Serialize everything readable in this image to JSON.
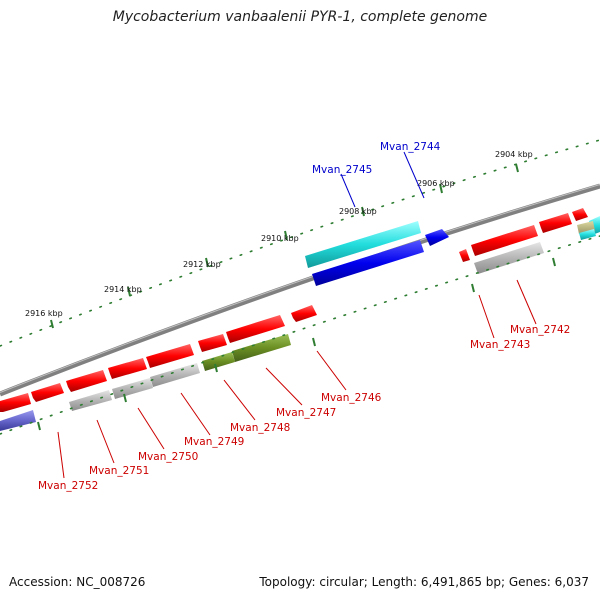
{
  "title": "Mycobacterium vanbaalenii PYR-1, complete genome",
  "accession": "Accession: NC_008726",
  "summary": "Topology: circular; Length: 6,491,865 bp; Genes: 6,037",
  "kbp_labels": [
    "2904 kbp",
    "2906 kbp",
    "2908 kbp",
    "2910 kbp",
    "2912 kbp",
    "2914 kbp",
    "2916 kbp"
  ],
  "genes": [
    {
      "label": "Mvan_2744",
      "color": "#0000cc"
    },
    {
      "label": "Mvan_2745",
      "color": "#0000cc"
    },
    {
      "label": "Mvan_2742",
      "color": "#cc0000"
    },
    {
      "label": "Mvan_2743",
      "color": "#cc0000"
    },
    {
      "label": "Mvan_2746",
      "color": "#cc0000"
    },
    {
      "label": "Mvan_2747",
      "color": "#cc0000"
    },
    {
      "label": "Mvan_2748",
      "color": "#cc0000"
    },
    {
      "label": "Mvan_2749",
      "color": "#cc0000"
    },
    {
      "label": "Mvan_2750",
      "color": "#cc0000"
    },
    {
      "label": "Mvan_2751",
      "color": "#cc0000"
    },
    {
      "label": "Mvan_2752",
      "color": "#cc0000"
    }
  ],
  "colors": {
    "red": "#ff0000",
    "gray": "#b5b5b5",
    "cyan": "#22dddd",
    "blue": "#0000ee",
    "olive": "#6b8e23",
    "slate": "#6666cc",
    "backbone": "#808080",
    "tick": "#2e7d32"
  }
}
